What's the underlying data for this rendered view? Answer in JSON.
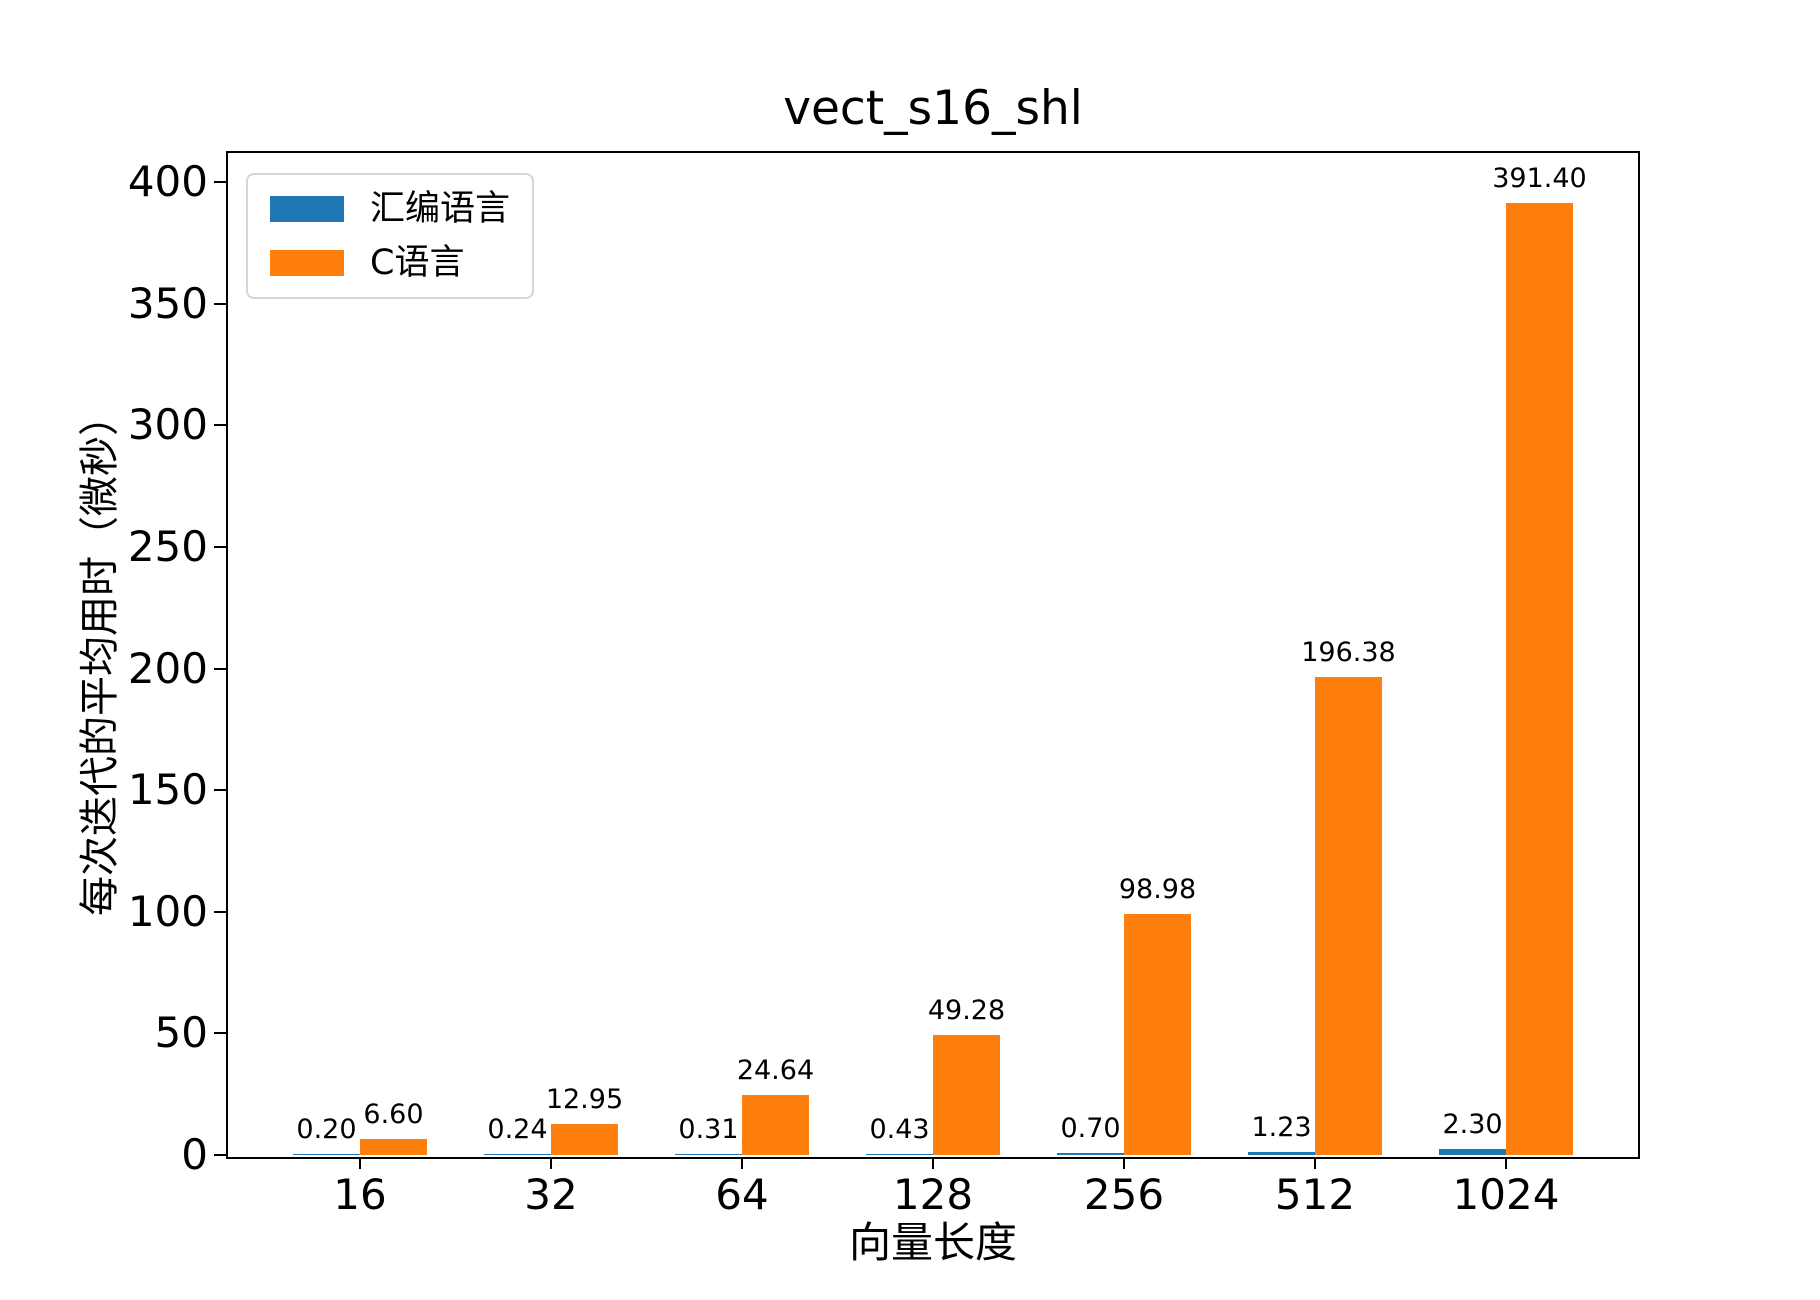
{
  "chart_data": {
    "type": "bar",
    "title": "vect_s16_shl",
    "xlabel": "向量长度",
    "ylabel": "每次迭代的平均用时（微秒）",
    "categories": [
      "16",
      "32",
      "64",
      "128",
      "256",
      "512",
      "1024"
    ],
    "series": [
      {
        "name": "汇编语言",
        "color": "#1f77b4",
        "values": [
          0.2,
          0.24,
          0.31,
          0.43,
          0.7,
          1.23,
          2.3
        ],
        "labels": [
          "0.20",
          "0.24",
          "0.31",
          "0.43",
          "0.70",
          "1.23",
          "2.30"
        ]
      },
      {
        "name": "C语言",
        "color": "#ff7f0e",
        "values": [
          6.6,
          12.95,
          24.64,
          49.28,
          98.98,
          196.38,
          391.4
        ],
        "labels": [
          "6.60",
          "12.95",
          "24.64",
          "49.28",
          "98.98",
          "196.38",
          "391.40"
        ]
      }
    ],
    "yticks": [
      0,
      50,
      100,
      150,
      200,
      250,
      300,
      350,
      400
    ],
    "ylim": [
      0,
      412
    ],
    "grid": false,
    "legend_position": "upper-left"
  }
}
